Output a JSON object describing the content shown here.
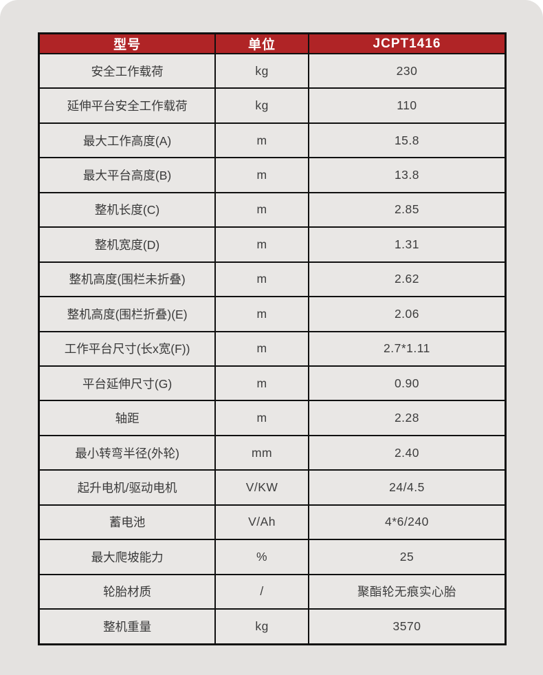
{
  "page": {
    "background": "#ffffff",
    "panel_background": "#e4e2e0"
  },
  "colors": {
    "header_background": "#b02426",
    "header_text": "#ffffff",
    "cell_background": "#e9e7e5",
    "border": "#101010",
    "body_text": "#3a3a3a"
  },
  "table": {
    "header": {
      "model_label": "型号",
      "unit_label": "单位",
      "model_value": "JCPT1416"
    },
    "rows": [
      {
        "label": "安全工作载荷",
        "unit": "kg",
        "value": "230"
      },
      {
        "label": "延伸平台安全工作载荷",
        "unit": "kg",
        "value": "110"
      },
      {
        "label": "最大工作高度(A)",
        "unit": "m",
        "value": "15.8"
      },
      {
        "label": "最大平台高度(B)",
        "unit": "m",
        "value": "13.8"
      },
      {
        "label": "整机长度(C)",
        "unit": "m",
        "value": "2.85"
      },
      {
        "label": "整机宽度(D)",
        "unit": "m",
        "value": "1.31"
      },
      {
        "label": "整机高度(围栏未折叠)",
        "unit": "m",
        "value": "2.62"
      },
      {
        "label": "整机高度(围栏折叠)(E)",
        "unit": "m",
        "value": "2.06"
      },
      {
        "label": "工作平台尺寸(长x宽(F))",
        "unit": "m",
        "value": "2.7*1.11"
      },
      {
        "label": "平台延伸尺寸(G)",
        "unit": "m",
        "value": "0.90"
      },
      {
        "label": "轴距",
        "unit": "m",
        "value": "2.28"
      },
      {
        "label": "最小转弯半径(外轮)",
        "unit": "mm",
        "value": "2.40"
      },
      {
        "label": "起升电机/驱动电机",
        "unit": "V/KW",
        "value": "24/4.5"
      },
      {
        "label": "蓄电池",
        "unit": "V/Ah",
        "value": "4*6/240"
      },
      {
        "label": "最大爬坡能力",
        "unit": "%",
        "value": "25"
      },
      {
        "label": "轮胎材质",
        "unit": "/",
        "value": "聚酯轮无痕实心胎"
      },
      {
        "label": "整机重量",
        "unit": "kg",
        "value": "3570"
      }
    ]
  }
}
